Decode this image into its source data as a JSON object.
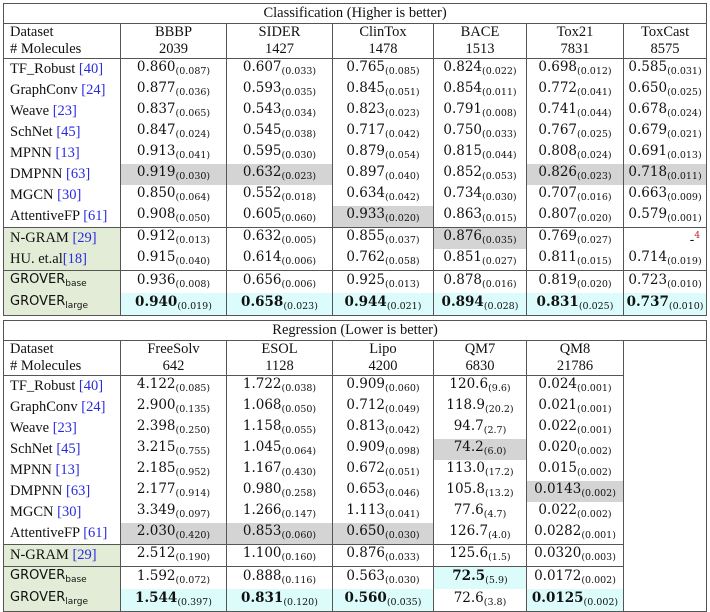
{
  "classification": {
    "title": "Classification (Higher is better)",
    "header_label_dataset": "Dataset",
    "header_label_molecules": "# Molecules",
    "datasets": [
      "BBBP",
      "SIDER",
      "ClinTox",
      "BACE",
      "Tox21",
      "ToxCast"
    ],
    "molecules": [
      "2039",
      "1427",
      "1478",
      "1513",
      "7831",
      "8575"
    ],
    "rows": [
      {
        "name": "TF_Robust ",
        "ref": "[40]",
        "group": "baseline",
        "cells": [
          [
            "0.860",
            "(0.087)"
          ],
          [
            "0.607",
            "(0.033)"
          ],
          [
            "0.765",
            "(0.085)"
          ],
          [
            "0.824",
            "(0.022)"
          ],
          [
            "0.698",
            "(0.012)"
          ],
          [
            "0.585",
            "(0.031)"
          ]
        ]
      },
      {
        "name": "GraphConv ",
        "ref": "[24]",
        "group": "baseline",
        "cells": [
          [
            "0.877",
            "(0.036)"
          ],
          [
            "0.593",
            "(0.035)"
          ],
          [
            "0.845",
            "(0.051)"
          ],
          [
            "0.854",
            "(0.011)"
          ],
          [
            "0.772",
            "(0.041)"
          ],
          [
            "0.650",
            "(0.025)"
          ]
        ]
      },
      {
        "name": "Weave ",
        "ref": "[23]",
        "group": "baseline",
        "cells": [
          [
            "0.837",
            "(0.065)"
          ],
          [
            "0.543",
            "(0.034)"
          ],
          [
            "0.823",
            "(0.023)"
          ],
          [
            "0.791",
            "(0.008)"
          ],
          [
            "0.741",
            "(0.044)"
          ],
          [
            "0.678",
            "(0.024)"
          ]
        ]
      },
      {
        "name": "SchNet ",
        "ref": "[45]",
        "group": "baseline",
        "cells": [
          [
            "0.847",
            "(0.024)"
          ],
          [
            "0.545",
            "(0.038)"
          ],
          [
            "0.717",
            "(0.042)"
          ],
          [
            "0.750",
            "(0.033)"
          ],
          [
            "0.767",
            "(0.025)"
          ],
          [
            "0.679",
            "(0.021)"
          ]
        ]
      },
      {
        "name": "MPNN ",
        "ref": "[13]",
        "group": "baseline",
        "cells": [
          [
            "0.913",
            "(0.041)"
          ],
          [
            "0.595",
            "(0.030)"
          ],
          [
            "0.879",
            "(0.054)"
          ],
          [
            "0.815",
            "(0.044)"
          ],
          [
            "0.808",
            "(0.024)"
          ],
          [
            "0.691",
            "(0.013)"
          ]
        ]
      },
      {
        "name": "DMPNN ",
        "ref": "[63]",
        "group": "baseline",
        "cells": [
          [
            "0.919",
            "(0.030)"
          ],
          [
            "0.632",
            "(0.023)"
          ],
          [
            "0.897",
            "(0.040)"
          ],
          [
            "0.852",
            "(0.053)"
          ],
          [
            "0.826",
            "(0.023)"
          ],
          [
            "0.718",
            "(0.011)"
          ]
        ]
      },
      {
        "name": "MGCN ",
        "ref": "[30]",
        "group": "baseline",
        "cells": [
          [
            "0.850",
            "(0.064)"
          ],
          [
            "0.552",
            "(0.018)"
          ],
          [
            "0.634",
            "(0.042)"
          ],
          [
            "0.734",
            "(0.030)"
          ],
          [
            "0.707",
            "(0.016)"
          ],
          [
            "0.663",
            "(0.009)"
          ]
        ]
      },
      {
        "name": "AttentiveFP ",
        "ref": "[61]",
        "group": "baseline",
        "cells": [
          [
            "0.908",
            "(0.050)"
          ],
          [
            "0.605",
            "(0.060)"
          ],
          [
            "0.933",
            "(0.020)"
          ],
          [
            "0.863",
            "(0.015)"
          ],
          [
            "0.807",
            "(0.020)"
          ],
          [
            "0.579",
            "(0.001)"
          ]
        ]
      },
      {
        "name": "N-GRAM ",
        "ref": "[29]",
        "group": "pretrain",
        "cells": [
          [
            "0.912",
            "(0.013)"
          ],
          [
            "0.632",
            "(0.005)"
          ],
          [
            "0.855",
            "(0.037)"
          ],
          [
            "0.876",
            "(0.035)"
          ],
          [
            "0.769",
            "(0.027)"
          ],
          [
            "-",
            "4"
          ]
        ]
      },
      {
        "name": "HU. et.al",
        "ref": "[18]",
        "group": "pretrain",
        "cells": [
          [
            "0.915",
            "(0.040)"
          ],
          [
            "0.614",
            "(0.006)"
          ],
          [
            "0.762",
            "(0.058)"
          ],
          [
            "0.851",
            "(0.027)"
          ],
          [
            "0.811",
            "(0.015)"
          ],
          [
            "0.714",
            "(0.019)"
          ]
        ]
      },
      {
        "name": "GROVER",
        "sub": "base",
        "group": "grover",
        "cells": [
          [
            "0.936",
            "(0.008)"
          ],
          [
            "0.656",
            "(0.006)"
          ],
          [
            "0.925",
            "(0.013)"
          ],
          [
            "0.878",
            "(0.016)"
          ],
          [
            "0.819",
            "(0.020)"
          ],
          [
            "0.723",
            "(0.010)"
          ]
        ]
      },
      {
        "name": "GROVER",
        "sub": "large",
        "group": "grover",
        "cells": [
          [
            "0.940",
            "(0.019)"
          ],
          [
            "0.658",
            "(0.023)"
          ],
          [
            "0.944",
            "(0.021)"
          ],
          [
            "0.894",
            "(0.028)"
          ],
          [
            "0.831",
            "(0.025)"
          ],
          [
            "0.737",
            "(0.010)"
          ]
        ]
      }
    ]
  },
  "regression": {
    "title": "Regression (Lower is better)",
    "header_label_dataset": "Dataset",
    "header_label_molecules": "# Molecules",
    "datasets": [
      "FreeSolv",
      "ESOL",
      "Lipo",
      "QM7",
      "QM8"
    ],
    "molecules": [
      "642",
      "1128",
      "4200",
      "6830",
      "21786"
    ],
    "rows": [
      {
        "name": "TF_Robust ",
        "ref": "[40]",
        "cells": [
          [
            "4.122",
            "(0.085)"
          ],
          [
            "1.722",
            "(0.038)"
          ],
          [
            "0.909",
            "(0.060)"
          ],
          [
            "120.6",
            "(9.6)"
          ],
          [
            "0.024",
            "(0.001)"
          ]
        ]
      },
      {
        "name": "GraphConv ",
        "ref": "[24]",
        "cells": [
          [
            "2.900",
            "(0.135)"
          ],
          [
            "1.068",
            "(0.050)"
          ],
          [
            "0.712",
            "(0.049)"
          ],
          [
            "118.9",
            "(20.2)"
          ],
          [
            "0.021",
            "(0.001)"
          ]
        ]
      },
      {
        "name": "Weave ",
        "ref": "[23]",
        "cells": [
          [
            "2.398",
            "(0.250)"
          ],
          [
            "1.158",
            "(0.055)"
          ],
          [
            "0.813",
            "(0.042)"
          ],
          [
            "94.7",
            "(2.7)"
          ],
          [
            "0.022",
            "(0.001)"
          ]
        ]
      },
      {
        "name": "SchNet ",
        "ref": "[45]",
        "cells": [
          [
            "3.215",
            "(0.755)"
          ],
          [
            "1.045",
            "(0.064)"
          ],
          [
            "0.909",
            "(0.098)"
          ],
          [
            "74.2",
            "(6.0)"
          ],
          [
            "0.020",
            "(0.002)"
          ]
        ]
      },
      {
        "name": "MPNN ",
        "ref": "[13]",
        "cells": [
          [
            "2.185",
            "(0.952)"
          ],
          [
            "1.167",
            "(0.430)"
          ],
          [
            "0.672",
            "(0.051)"
          ],
          [
            "113.0",
            "(17.2)"
          ],
          [
            "0.015",
            "(0.002)"
          ]
        ]
      },
      {
        "name": "DMPNN ",
        "ref": "[63]",
        "cells": [
          [
            "2.177",
            "(0.914)"
          ],
          [
            "0.980",
            "(0.258)"
          ],
          [
            "0.653",
            "(0.046)"
          ],
          [
            "105.8",
            "(13.2)"
          ],
          [
            "0.0143",
            "(0.002)"
          ]
        ]
      },
      {
        "name": "MGCN ",
        "ref": "[30]",
        "cells": [
          [
            "3.349",
            "(0.097)"
          ],
          [
            "1.266",
            "(0.147)"
          ],
          [
            "1.113",
            "(0.041)"
          ],
          [
            "77.6",
            "(4.7)"
          ],
          [
            "0.022",
            "(0.002)"
          ]
        ]
      },
      {
        "name": "AttentiveFP ",
        "ref": "[61]",
        "cells": [
          [
            "2.030",
            "(0.420)"
          ],
          [
            "0.853",
            "(0.060)"
          ],
          [
            "0.650",
            "(0.030)"
          ],
          [
            "126.7",
            "(4.0)"
          ],
          [
            "0.0282",
            "(0.001)"
          ]
        ]
      },
      {
        "name": "N-GRAM ",
        "ref": "[29]",
        "cells": [
          [
            "2.512",
            "(0.190)"
          ],
          [
            "1.100",
            "(0.160)"
          ],
          [
            "0.876",
            "(0.033)"
          ],
          [
            "125.6",
            "(1.5)"
          ],
          [
            "0.0320",
            "(0.003)"
          ]
        ]
      },
      {
        "name": "GROVER",
        "sub": "base",
        "cells": [
          [
            "1.592",
            "(0.072)"
          ],
          [
            "0.888",
            "(0.116)"
          ],
          [
            "0.563",
            "(0.030)"
          ],
          [
            "72.5",
            "(5.9)"
          ],
          [
            "0.0172",
            "(0.002)"
          ]
        ]
      },
      {
        "name": "GROVER",
        "sub": "large",
        "cells": [
          [
            "1.544",
            "(0.397)"
          ],
          [
            "0.831",
            "(0.120)"
          ],
          [
            "0.560",
            "(0.035)"
          ],
          [
            "72.6",
            "(3.8)"
          ],
          [
            "0.0125",
            "(0.002)"
          ]
        ]
      }
    ]
  },
  "colors": {
    "gray_highlight": "#d4d4d4",
    "cyan_highlight": "#dcfcfc",
    "green_rowlabel": "#e3ecd7",
    "ref_link": "#2a2adf",
    "footnote": "#c02020"
  }
}
